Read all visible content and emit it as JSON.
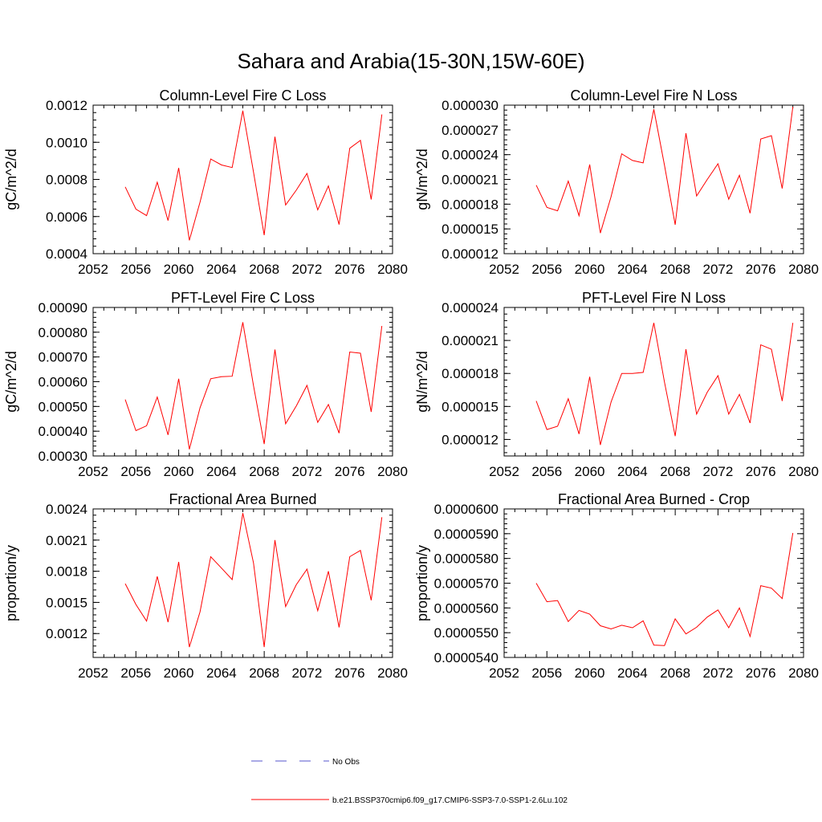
{
  "figure": {
    "title": "Sahara and Arabia(15-30N,15W-60E)",
    "legend": [
      {
        "label": "No Obs",
        "style": "dashed",
        "color": "#5555cc"
      },
      {
        "label": "b.e21.BSSP370cmip6.f09_g17.CMIP6-SSP3-7.0-SSP1-2.6Lu.102",
        "style": "solid",
        "color": "#ff0000"
      }
    ],
    "colors": {
      "series": "#ff0000",
      "obs": "#5555cc",
      "axes": "#000000"
    }
  },
  "chart_data": [
    {
      "type": "line",
      "title": "Column-Level Fire C Loss",
      "xlabel": "",
      "ylabel": "gC/m^2/d",
      "xlim": [
        2052,
        2080
      ],
      "ylim": [
        0.0004,
        0.0012
      ],
      "xticks": [
        "2052",
        "2056",
        "2060",
        "2064",
        "2068",
        "2072",
        "2076",
        "2080"
      ],
      "yticks": [
        "0.0004",
        "0.0006",
        "0.0008",
        "0.0010",
        "0.0012"
      ],
      "x": [
        2055,
        2056,
        2057,
        2058,
        2059,
        2060,
        2061,
        2062,
        2063,
        2064,
        2065,
        2066,
        2067,
        2068,
        2069,
        2070,
        2071,
        2072,
        2073,
        2074,
        2075,
        2076,
        2077,
        2078,
        2079
      ],
      "series": [
        {
          "values": [
            0.00076,
            0.00064,
            0.000605,
            0.000785,
            0.000578,
            0.000862,
            0.000472,
            0.000678,
            0.00091,
            0.000878,
            0.000864,
            0.00117,
            0.00084,
            0.0005,
            0.00103,
            0.000662,
            0.000742,
            0.000832,
            0.000636,
            0.000765,
            0.000557,
            0.000968,
            0.00101,
            0.000692,
            0.00115
          ]
        }
      ]
    },
    {
      "type": "line",
      "title": "Column-Level Fire N Loss",
      "xlabel": "",
      "ylabel": "gN/m^2/d",
      "xlim": [
        2052,
        2080
      ],
      "ylim": [
        1.2e-05,
        3e-05
      ],
      "xticks": [
        "2052",
        "2056",
        "2060",
        "2064",
        "2068",
        "2072",
        "2076",
        "2080"
      ],
      "yticks": [
        "0.000012",
        "0.000015",
        "0.000018",
        "0.000021",
        "0.000024",
        "0.000027",
        "0.000030"
      ],
      "x": [
        2055,
        2056,
        2057,
        2058,
        2059,
        2060,
        2061,
        2062,
        2063,
        2064,
        2065,
        2066,
        2067,
        2068,
        2069,
        2070,
        2071,
        2072,
        2073,
        2074,
        2075,
        2076,
        2077,
        2078,
        2079
      ],
      "series": [
        {
          "values": [
            2.03e-05,
            1.76e-05,
            1.72e-05,
            2.08e-05,
            1.66e-05,
            2.28e-05,
            1.45e-05,
            1.89e-05,
            2.41e-05,
            2.33e-05,
            2.3e-05,
            2.95e-05,
            2.27e-05,
            1.55e-05,
            2.66e-05,
            1.9e-05,
            2.1e-05,
            2.29e-05,
            1.86e-05,
            2.15e-05,
            1.69e-05,
            2.59e-05,
            2.63e-05,
            1.99e-05,
            2.98e-05
          ]
        }
      ]
    },
    {
      "type": "line",
      "title": "PFT-Level Fire C Loss",
      "xlabel": "",
      "ylabel": "gC/m^2/d",
      "xlim": [
        2052,
        2080
      ],
      "ylim": [
        0.0003,
        0.0009
      ],
      "xticks": [
        "2052",
        "2056",
        "2060",
        "2064",
        "2068",
        "2072",
        "2076",
        "2080"
      ],
      "yticks": [
        "0.00030",
        "0.00040",
        "0.00050",
        "0.00060",
        "0.00070",
        "0.00080",
        "0.00090"
      ],
      "x": [
        2055,
        2056,
        2057,
        2058,
        2059,
        2060,
        2061,
        2062,
        2063,
        2064,
        2065,
        2066,
        2067,
        2068,
        2069,
        2070,
        2071,
        2072,
        2073,
        2074,
        2075,
        2076,
        2077,
        2078,
        2079
      ],
      "series": [
        {
          "values": [
            0.000528,
            0.000402,
            0.000422,
            0.000538,
            0.000385,
            0.000612,
            0.000327,
            0.000495,
            0.000612,
            0.00062,
            0.000622,
            0.00084,
            0.000584,
            0.000348,
            0.00073,
            0.00043,
            0.000502,
            0.000585,
            0.000436,
            0.000508,
            0.000392,
            0.00072,
            0.000715,
            0.000478,
            0.000825
          ]
        }
      ]
    },
    {
      "type": "line",
      "title": "PFT-Level Fire N Loss",
      "xlabel": "",
      "ylabel": "gN/m^2/d",
      "xlim": [
        2052,
        2080
      ],
      "ylim": [
        1.05e-05,
        2.4e-05
      ],
      "xticks": [
        "2052",
        "2056",
        "2060",
        "2064",
        "2068",
        "2072",
        "2076",
        "2080"
      ],
      "yticks": [
        "0.000012",
        "0.000015",
        "0.000018",
        "0.000021",
        "0.000024"
      ],
      "x": [
        2055,
        2056,
        2057,
        2058,
        2059,
        2060,
        2061,
        2062,
        2063,
        2064,
        2065,
        2066,
        2067,
        2068,
        2069,
        2070,
        2071,
        2072,
        2073,
        2074,
        2075,
        2076,
        2077,
        2078,
        2079
      ],
      "series": [
        {
          "values": [
            1.55e-05,
            1.29e-05,
            1.32e-05,
            1.57e-05,
            1.25e-05,
            1.77e-05,
            1.15e-05,
            1.54e-05,
            1.8e-05,
            1.8e-05,
            1.81e-05,
            2.26e-05,
            1.72e-05,
            1.23e-05,
            2.02e-05,
            1.43e-05,
            1.63e-05,
            1.78e-05,
            1.43e-05,
            1.61e-05,
            1.35e-05,
            2.06e-05,
            2.02e-05,
            1.55e-05,
            2.26e-05
          ]
        }
      ]
    },
    {
      "type": "line",
      "title": "Fractional Area Burned",
      "xlabel": "",
      "ylabel": "proportion/y",
      "xlim": [
        2052,
        2080
      ],
      "ylim": [
        0.00097,
        0.0024
      ],
      "xticks": [
        "2052",
        "2056",
        "2060",
        "2064",
        "2068",
        "2072",
        "2076",
        "2080"
      ],
      "yticks": [
        "0.0012",
        "0.0015",
        "0.0018",
        "0.0021",
        "0.0024"
      ],
      "x": [
        2055,
        2056,
        2057,
        2058,
        2059,
        2060,
        2061,
        2062,
        2063,
        2064,
        2065,
        2066,
        2067,
        2068,
        2069,
        2070,
        2071,
        2072,
        2073,
        2074,
        2075,
        2076,
        2077,
        2078,
        2079
      ],
      "series": [
        {
          "values": [
            0.00168,
            0.00148,
            0.00132,
            0.00175,
            0.00131,
            0.00189,
            0.00107,
            0.00141,
            0.00194,
            0.00183,
            0.00172,
            0.00236,
            0.00188,
            0.00107,
            0.0021,
            0.00146,
            0.00167,
            0.00182,
            0.00142,
            0.0018,
            0.00126,
            0.00194,
            0.002,
            0.00152,
            0.00232
          ]
        }
      ]
    },
    {
      "type": "line",
      "title": "Fractional Area Burned - Crop",
      "xlabel": "",
      "ylabel": "proportion/y",
      "xlim": [
        2052,
        2080
      ],
      "ylim": [
        5.4e-05,
        6e-05
      ],
      "xticks": [
        "2052",
        "2056",
        "2060",
        "2064",
        "2068",
        "2072",
        "2076",
        "2080"
      ],
      "yticks": [
        "0.0000540",
        "0.0000550",
        "0.0000560",
        "0.0000570",
        "0.0000580",
        "0.0000590",
        "0.0000600"
      ],
      "x": [
        2055,
        2056,
        2057,
        2058,
        2059,
        2060,
        2061,
        2062,
        2063,
        2064,
        2065,
        2066,
        2067,
        2068,
        2069,
        2070,
        2071,
        2072,
        2073,
        2074,
        2075,
        2076,
        2077,
        2078,
        2079
      ],
      "series": [
        {
          "values": [
            5.7e-05,
            5.625e-05,
            5.63e-05,
            5.545e-05,
            5.59e-05,
            5.575e-05,
            5.528e-05,
            5.515e-05,
            5.53e-05,
            5.52e-05,
            5.548e-05,
            5.45e-05,
            5.448e-05,
            5.556e-05,
            5.495e-05,
            5.522e-05,
            5.563e-05,
            5.592e-05,
            5.52e-05,
            5.6e-05,
            5.485e-05,
            5.69e-05,
            5.68e-05,
            5.638e-05,
            5.903e-05
          ]
        }
      ]
    }
  ]
}
